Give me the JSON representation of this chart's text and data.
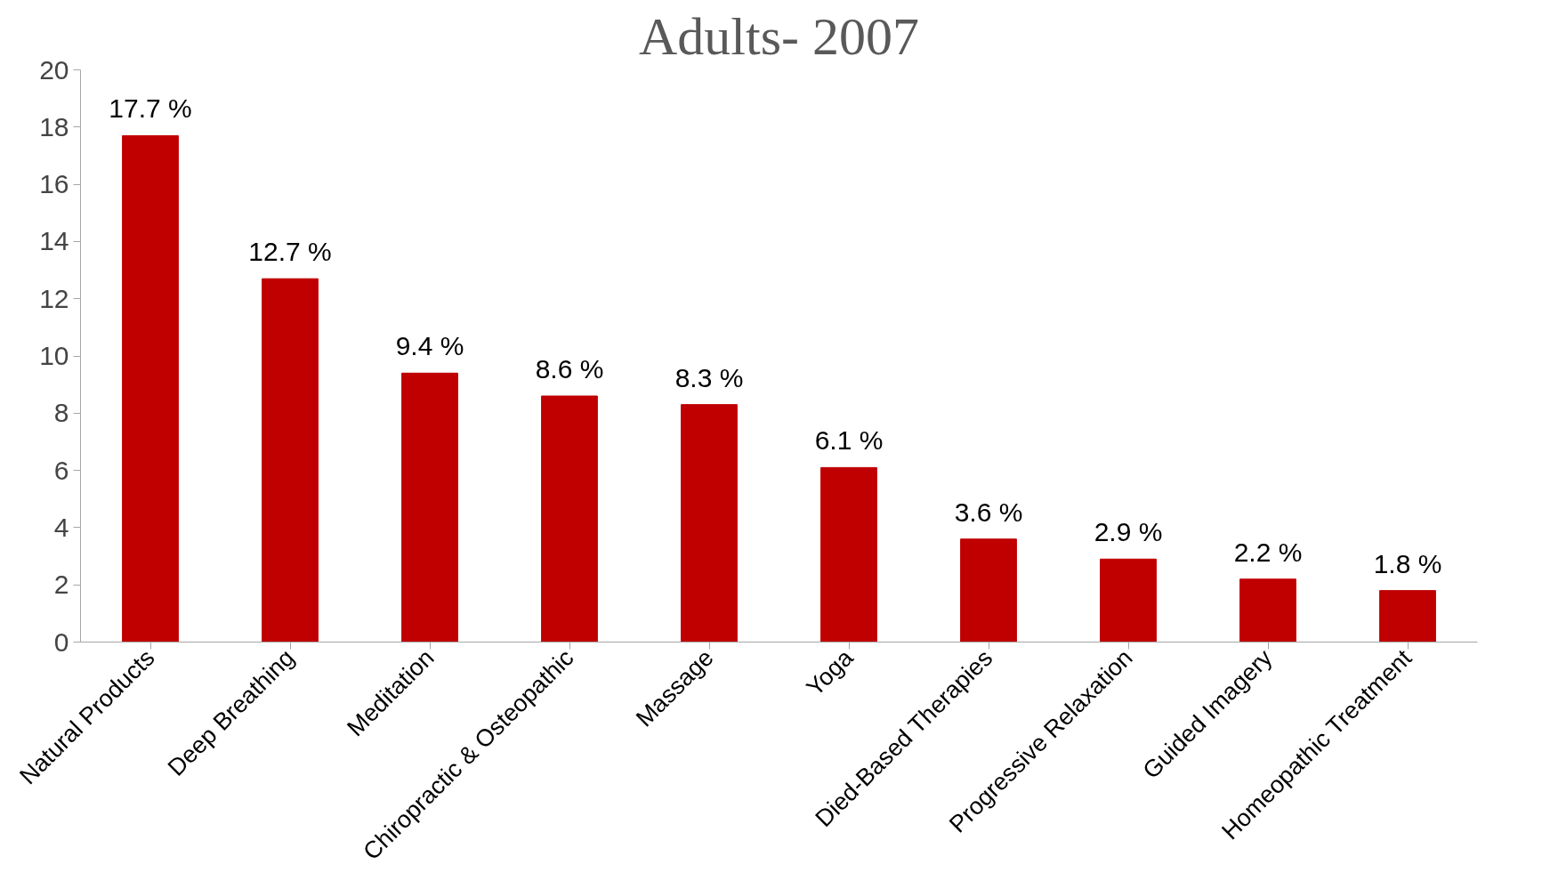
{
  "chart_data": {
    "type": "bar",
    "title": "Adults- 2007",
    "categories": [
      "Natural Products",
      "Deep Breathing",
      "Meditation",
      "Chiropractic & Osteopathic",
      "Massage",
      "Yoga",
      "Died-Based Therapies",
      "Progressive Relaxation",
      "Guided Imagery",
      "Homeopathic Treatment"
    ],
    "values": [
      17.7,
      12.7,
      9.4,
      8.6,
      8.3,
      6.1,
      3.6,
      2.9,
      2.2,
      1.8
    ],
    "value_labels": [
      "17.7 %",
      "12.7 %",
      "9.4 %",
      "8.6 %",
      "8.3 %",
      "6.1 %",
      "3.6 %",
      "2.9 %",
      "2.2 %",
      "1.8 %"
    ],
    "color": "#c00000",
    "ylim": [
      0,
      20
    ],
    "yticks": [
      0,
      2,
      4,
      6,
      8,
      10,
      12,
      14,
      16,
      18,
      20
    ],
    "grid": false
  }
}
